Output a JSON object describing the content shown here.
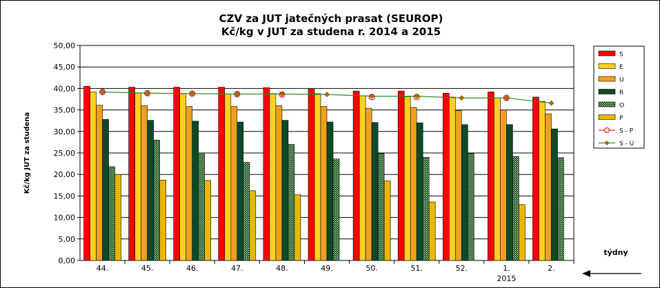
{
  "chart_data": {
    "type": "bar",
    "title": "CZV za JUT jatečných prasat (SEUROP)",
    "subtitle": "Kč/kg v JUT za studena r. 2014 a 2015",
    "ylabel": "Kč/kg  JUT za studena",
    "xlabel": "týdny",
    "ylim": [
      0,
      50
    ],
    "yticks": [
      "0,00",
      "5,00",
      "10,00",
      "15,00",
      "20,00",
      "25,00",
      "30,00",
      "35,00",
      "40,00",
      "45,00",
      "50,00"
    ],
    "categories": [
      "44.",
      "45.",
      "46.",
      "47.",
      "48.",
      "49.",
      "50.",
      "51.",
      "52.",
      "1.",
      "2."
    ],
    "year_label": "2015",
    "year_label_category_index": 9,
    "grid": true,
    "legend_position": "right",
    "series": [
      {
        "name": "S",
        "kind": "bar",
        "color": "#ff0000",
        "values": [
          40.5,
          40.3,
          40.3,
          40.3,
          40.2,
          40.0,
          39.4,
          39.4,
          38.9,
          39.2,
          38.0
        ]
      },
      {
        "name": "E",
        "kind": "bar",
        "color": "#ffd21f",
        "values": [
          39.2,
          38.9,
          38.8,
          38.7,
          38.8,
          38.8,
          38.3,
          38.1,
          38.0,
          37.8,
          37.0
        ]
      },
      {
        "name": "U",
        "kind": "bar",
        "color": "#f0a020",
        "values": [
          36.1,
          36.0,
          35.8,
          35.8,
          36.0,
          35.8,
          35.4,
          35.6,
          34.9,
          35.0,
          34.1
        ]
      },
      {
        "name": "R",
        "kind": "bar",
        "color": "#0d4a2a",
        "values": [
          32.8,
          32.6,
          32.4,
          32.2,
          32.6,
          32.2,
          32.1,
          32.0,
          31.6,
          31.6,
          30.6
        ]
      },
      {
        "name": "O",
        "kind": "bar",
        "pattern": "dots",
        "color": "#3a7a2a",
        "values": [
          21.8,
          28.0,
          25.0,
          22.8,
          27.0,
          23.6,
          24.9,
          24.0,
          24.9,
          24.2,
          23.9
        ]
      },
      {
        "name": "P",
        "kind": "bar",
        "color": "#e6b800",
        "values": [
          20.0,
          18.7,
          18.6,
          16.2,
          15.3,
          null,
          18.5,
          13.6,
          null,
          13.0,
          null
        ]
      },
      {
        "name": "S - P",
        "kind": "line",
        "marker": "circle",
        "color": "#e02020",
        "values": [
          39.2,
          38.9,
          38.8,
          38.7,
          38.6,
          null,
          38.0,
          38.0,
          null,
          37.8,
          null
        ]
      },
      {
        "name": "S - U",
        "kind": "line",
        "marker": "diamond",
        "color": "#2a8a2a",
        "marker_color": "#b07000",
        "values": [
          39.2,
          38.9,
          38.8,
          38.7,
          38.7,
          38.6,
          38.2,
          38.2,
          37.8,
          37.8,
          36.6
        ]
      }
    ]
  }
}
